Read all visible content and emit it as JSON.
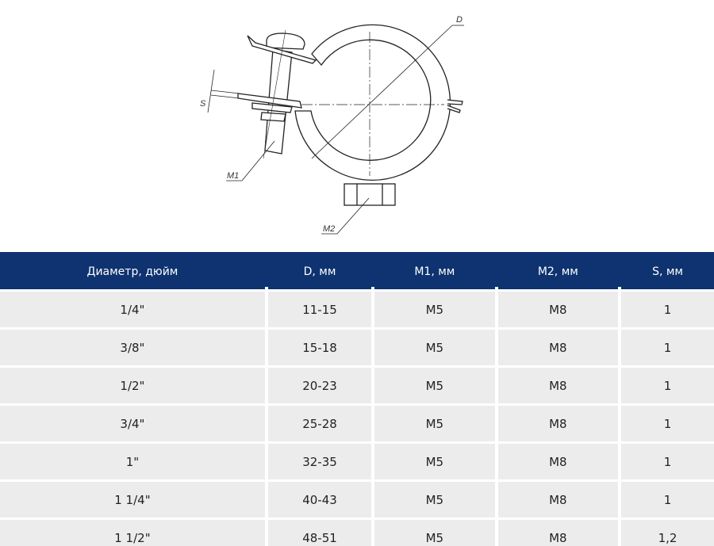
{
  "drawing": {
    "labels": {
      "D": "D",
      "S": "S",
      "M1": "M1",
      "M2": "M2"
    }
  },
  "table": {
    "header_color": "#0e3370",
    "columns": [
      "Диаметр, дюйм",
      "D, мм",
      "M1, мм",
      "M2, мм",
      "S, мм"
    ],
    "rows": [
      [
        "1/4\"",
        "11-15",
        "M5",
        "M8",
        "1"
      ],
      [
        "3/8\"",
        "15-18",
        "M5",
        "M8",
        "1"
      ],
      [
        "1/2\"",
        "20-23",
        "M5",
        "M8",
        "1"
      ],
      [
        "3/4\"",
        "25-28",
        "M5",
        "M8",
        "1"
      ],
      [
        "1\"",
        "32-35",
        "M5",
        "M8",
        "1"
      ],
      [
        "1 1/4\"",
        "40-43",
        "M5",
        "M8",
        "1"
      ],
      [
        "1 1/2\"",
        "48-51",
        "M5",
        "M8",
        "1,2"
      ]
    ]
  }
}
